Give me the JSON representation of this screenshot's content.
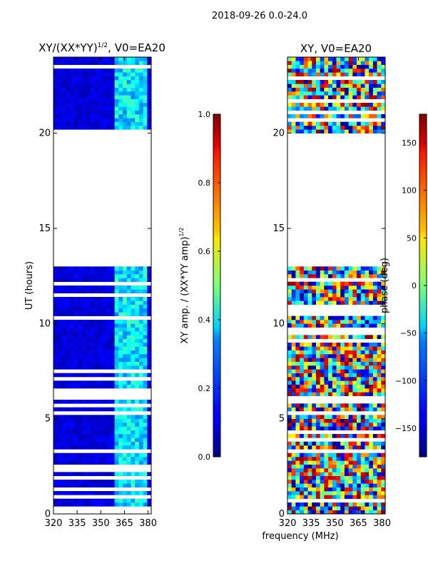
{
  "suptitle": "2018-09-26 0.0-24.0",
  "xlabel_common": "frequency (MHz)",
  "chart_data": [
    {
      "type": "heatmap",
      "title": "XY/(XX*YY)",
      "title_superscript": "1/2",
      "title_suffix": ", V0=EA20",
      "xlabel": "",
      "ylabel": "UT (hours)",
      "xlim": [
        320,
        382
      ],
      "ylim": [
        0,
        24
      ],
      "x_ticks": [
        320,
        335,
        350,
        365,
        380
      ],
      "y_ticks": [
        0,
        5,
        10,
        15,
        20
      ],
      "data_gap_hours": [
        19.8,
        13.0
      ],
      "colorbar": {
        "label": "XY amp. / (XX*YY amp)",
        "label_superscript": "1/2",
        "range": [
          0.0,
          1.0
        ],
        "ticks": [
          "0.0",
          "0.2",
          "0.4",
          "0.6",
          "0.8",
          "1.0"
        ],
        "colormap": "jet"
      }
    },
    {
      "type": "heatmap",
      "title": "XY, V0=EA20",
      "xlabel": "",
      "ylabel": "",
      "xlim": [
        320,
        382
      ],
      "ylim": [
        0,
        24
      ],
      "x_ticks": [
        320,
        335,
        350,
        365,
        380
      ],
      "y_ticks": [
        0,
        5,
        10,
        15,
        20
      ],
      "data_gap_hours": [
        19.8,
        13.0
      ],
      "colorbar": {
        "label": "phase (deg)",
        "range": [
          -180,
          180
        ],
        "ticks": [
          "150",
          "100",
          "50",
          "0",
          "−50",
          "−100",
          "−150"
        ],
        "tick_values": [
          150,
          100,
          50,
          0,
          -50,
          -100,
          -150
        ],
        "colormap": "jet"
      }
    }
  ]
}
